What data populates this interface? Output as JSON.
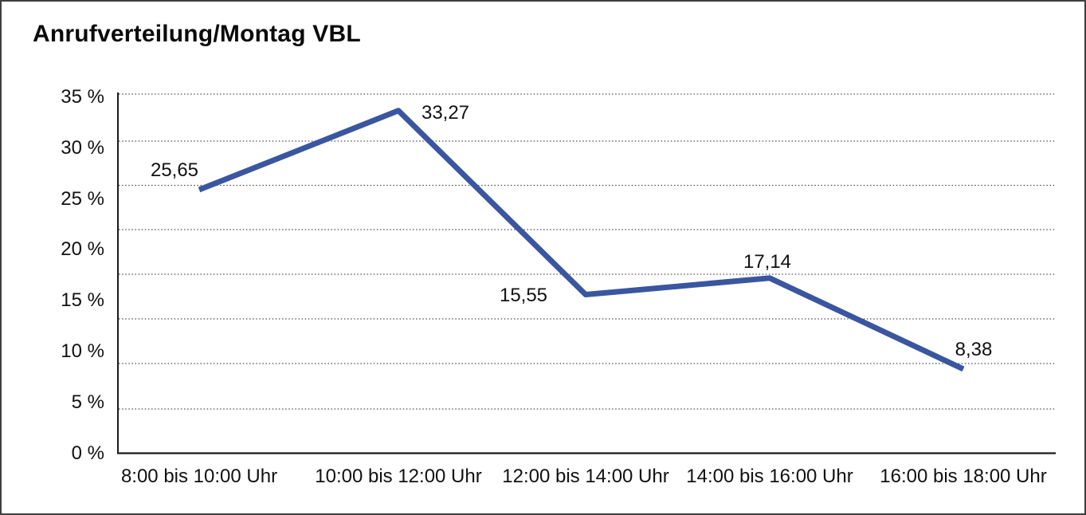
{
  "title": "Anrufverteilung/Montag VBL",
  "chart_data": {
    "type": "line",
    "title": "Anrufverteilung/Montag VBL",
    "categories": [
      "8:00 bis 10:00 Uhr",
      "10:00 bis 12:00 Uhr",
      "12:00 bis 14:00 Uhr",
      "14:00 bis 16:00 Uhr",
      "16:00 bis 18:00 Uhr"
    ],
    "values": [
      25.65,
      33.27,
      15.55,
      17.14,
      8.38
    ],
    "data_labels": [
      "25,65",
      "33,27",
      "15,55",
      "17,14",
      "8,38"
    ],
    "series_name": "Anrufverteilung Montag VBL",
    "xlabel": "",
    "ylabel": "",
    "y_tick_labels_bottom_to_top": [
      "0 %",
      "5 %",
      "10 %",
      "15 %",
      "20 %",
      "25 %",
      "30 %",
      "35 %"
    ],
    "ylim": [
      0,
      35
    ],
    "y_tick_step": 5,
    "grid": "horizontal-dotted",
    "legend": "none",
    "colors": {
      "line": "#3A56A0",
      "axis": "#1a1a1a",
      "gridline": "#4d4d4d",
      "text": "#111111",
      "background": "#ffffff",
      "frame_border": "#3f3f3f"
    }
  }
}
